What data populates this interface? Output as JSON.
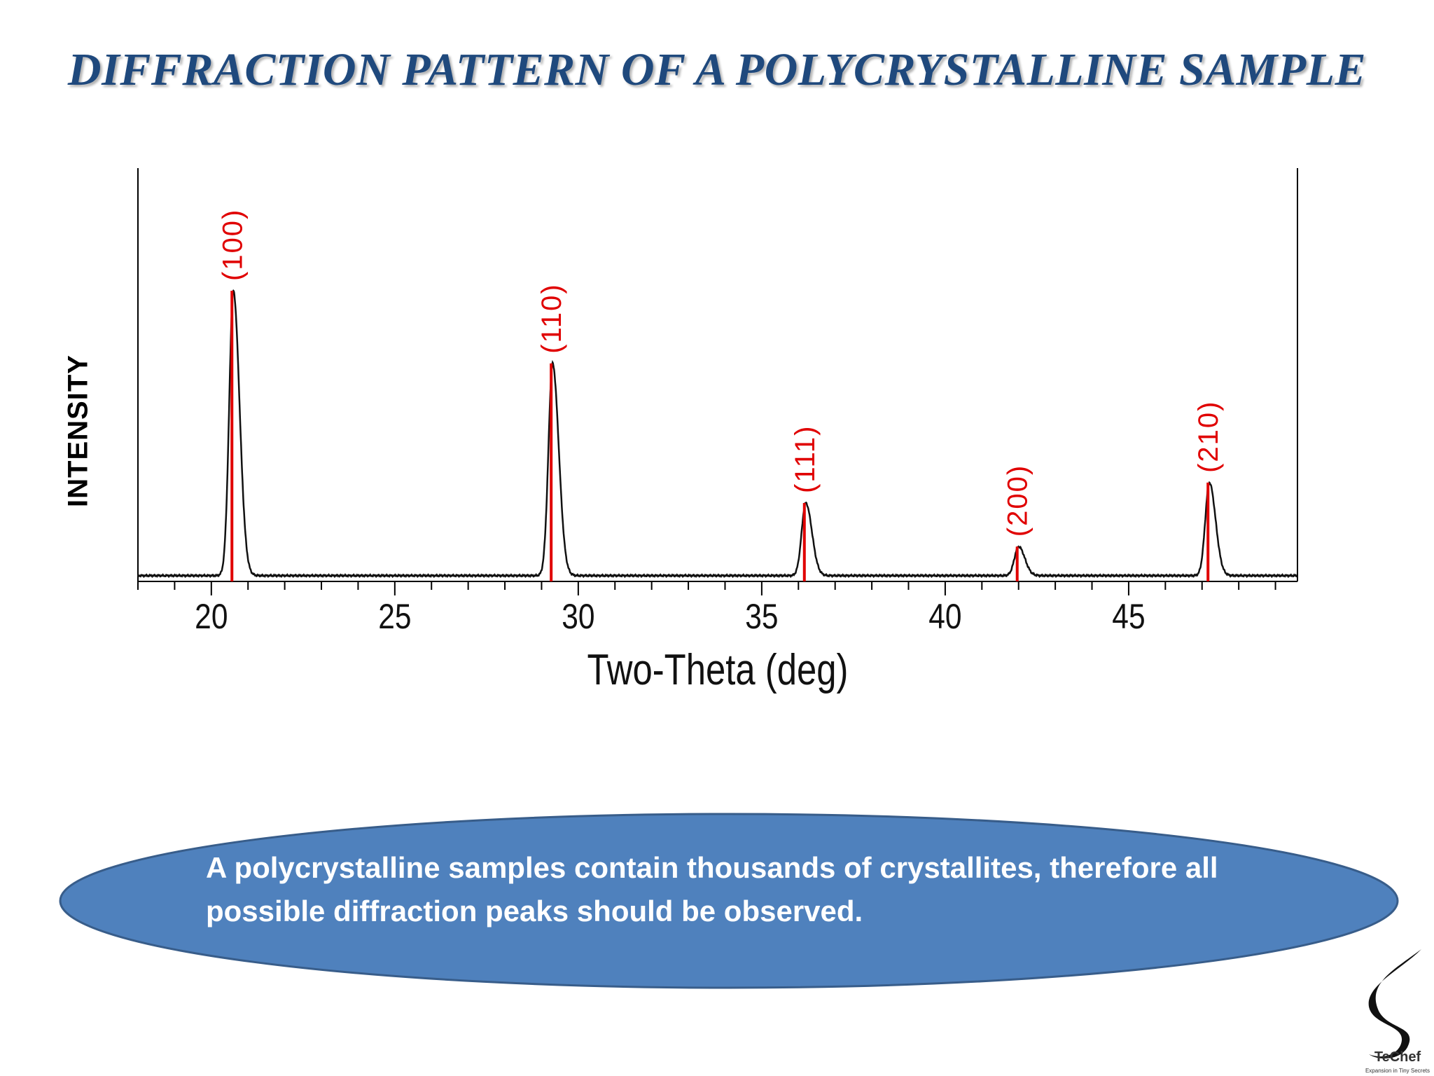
{
  "slide": {
    "title": "DIFFRACTION PATTERN OF A POLYCRYSTALLINE SAMPLE",
    "callout_text": "A polycrystalline samples contain thousands of crystallites, therefore all possible diffraction peaks should be observed."
  },
  "logo": {
    "name": "TeChef",
    "tagline": "Expansion in Tiny Secrets"
  },
  "colors": {
    "title": "#1f497d",
    "peak_marker": "#e00000",
    "callout_fill": "#4f81bd",
    "callout_border": "#385d8a"
  },
  "chart_data": {
    "type": "line",
    "xlabel": "Two-Theta (deg)",
    "ylabel": "INTENSITY",
    "xlim": [
      18,
      49.6
    ],
    "ylim": [
      0,
      100
    ],
    "x_ticks": [
      20,
      25,
      30,
      35,
      40,
      45
    ],
    "minor_tick_step": 1,
    "grid": false,
    "baseline": 2,
    "peaks": [
      {
        "label": "(100)",
        "position": 20.6,
        "intensity": 100
      },
      {
        "label": "(110)",
        "position": 29.3,
        "intensity": 75
      },
      {
        "label": "(111)",
        "position": 36.2,
        "intensity": 27
      },
      {
        "label": "(200)",
        "position": 42.0,
        "intensity": 12
      },
      {
        "label": "(210)",
        "position": 47.2,
        "intensity": 34
      }
    ]
  }
}
